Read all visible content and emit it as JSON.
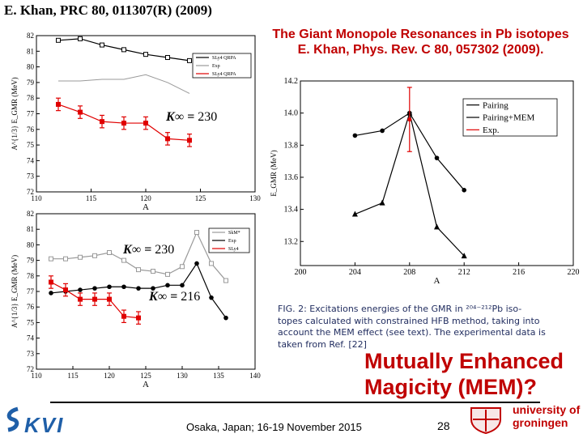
{
  "header": {
    "citation": "E. Khan, PRC 80, 011307(R) (2009)"
  },
  "title": {
    "line1": "The Giant Monopole Resonances in Pb isotopes",
    "line2": "E. Khan, Phys. Rev. C 80, 057302 (2009)."
  },
  "annotations": {
    "k_top": "230",
    "k_bottom_upper": "230",
    "k_bottom_lower": "216",
    "k_label": "K∞ ="
  },
  "caption": {
    "line1": "FIG. 2: Excitations energies of the GMR in ²⁰⁴⁻²¹²Pb iso-",
    "line2": "topes calculated with constrained HFB method, taking into",
    "line3": "account the MEM effect (see text). The experimental data is",
    "line4": "taken from Ref. [22]"
  },
  "mem_question": {
    "line1": "Mutually Enhanced",
    "line2": "Magicity (MEM)?"
  },
  "footer": {
    "venue": "Osaka, Japan; 16-19 November 2015",
    "page": "28",
    "logo_left": "KVI",
    "logo_right_line1": "university of",
    "logo_right_line2": "groningen"
  },
  "colors": {
    "accent_red": "#c00000",
    "exp_red": "#e00000",
    "caption_blue": "#1f2b5e"
  },
  "chart_data": [
    {
      "type": "line",
      "id": "top-left",
      "xlabel": "A",
      "ylabel": "A^{1/3} E_GMR (MeV)",
      "xlim": [
        110,
        130
      ],
      "ylim": [
        72,
        82
      ],
      "xticks": [
        110,
        115,
        120,
        125,
        130
      ],
      "yticks": [
        72,
        73,
        74,
        75,
        76,
        77,
        78,
        79,
        80,
        81,
        82
      ],
      "legend": [
        "SLy4 QRPA",
        "Exp",
        "SLy4 QRPA"
      ],
      "series": [
        {
          "name": "SLy4 CHF",
          "style": "open-square",
          "color": "#000000",
          "x": [
            112,
            114,
            116,
            118,
            120,
            122,
            124
          ],
          "y": [
            81.7,
            81.8,
            81.4,
            81.1,
            80.8,
            80.6,
            80.4
          ]
        },
        {
          "name": "SLy4 QRPA",
          "style": "line",
          "color": "#999999",
          "x": [
            112,
            114,
            116,
            118,
            120,
            122,
            124
          ],
          "y": [
            79.1,
            79.1,
            79.2,
            79.2,
            79.5,
            79.0,
            78.3
          ]
        },
        {
          "name": "Exp",
          "style": "filled-square-err",
          "color": "#e00000",
          "x": [
            112,
            114,
            116,
            118,
            120,
            122,
            124
          ],
          "y": [
            77.6,
            77.1,
            76.5,
            76.4,
            76.4,
            75.4,
            75.3
          ],
          "err": [
            0.4,
            0.4,
            0.4,
            0.4,
            0.4,
            0.4,
            0.4
          ]
        }
      ]
    },
    {
      "type": "line",
      "id": "bottom-left",
      "xlabel": "A",
      "ylabel": "A^{1/3} E_GMR (MeV)",
      "xlim": [
        110,
        140
      ],
      "ylim": [
        72,
        82
      ],
      "xticks": [
        110,
        115,
        120,
        125,
        130,
        135,
        140
      ],
      "yticks": [
        72,
        73,
        74,
        75,
        76,
        77,
        78,
        79,
        80,
        81,
        82
      ],
      "legend": [
        "SkM*",
        "Exp",
        "SLy4"
      ],
      "series": [
        {
          "name": "SLy4",
          "style": "open-square",
          "color": "#999999",
          "x": [
            112,
            114,
            116,
            118,
            120,
            122,
            124,
            126,
            128,
            130,
            132,
            134,
            136
          ],
          "y": [
            79.1,
            79.1,
            79.2,
            79.3,
            79.5,
            79.0,
            78.4,
            78.3,
            78.1,
            78.6,
            80.8,
            78.8,
            77.7
          ]
        },
        {
          "name": "SkM*",
          "style": "filled-circle",
          "color": "#000000",
          "x": [
            112,
            114,
            116,
            118,
            120,
            122,
            124,
            126,
            128,
            130,
            132,
            134,
            136
          ],
          "y": [
            76.9,
            77.0,
            77.1,
            77.2,
            77.3,
            77.3,
            77.2,
            77.2,
            77.4,
            77.4,
            78.8,
            76.6,
            75.3
          ]
        },
        {
          "name": "Exp",
          "style": "filled-square-err",
          "color": "#e00000",
          "x": [
            112,
            114,
            116,
            118,
            120,
            122,
            124
          ],
          "y": [
            77.6,
            77.1,
            76.5,
            76.5,
            76.5,
            75.4,
            75.3
          ],
          "err": [
            0.4,
            0.4,
            0.4,
            0.4,
            0.4,
            0.4,
            0.4
          ]
        }
      ]
    },
    {
      "type": "line",
      "id": "right",
      "xlabel": "A",
      "ylabel": "E_GMR (MeV)",
      "xlim": [
        200,
        220
      ],
      "ylim": [
        13.05,
        14.2
      ],
      "xticks": [
        200,
        204,
        208,
        212,
        216,
        220
      ],
      "yticks": [
        13.2,
        13.4,
        13.6,
        13.8,
        14.0,
        14.2
      ],
      "legend": [
        "Pairing",
        "Pairing+MEM",
        "Exp."
      ],
      "series": [
        {
          "name": "Pairing",
          "style": "filled-circle",
          "color": "#000000",
          "x": [
            204,
            206,
            208,
            210,
            212
          ],
          "y": [
            13.86,
            13.89,
            14.0,
            13.72,
            13.52
          ]
        },
        {
          "name": "Pairing+MEM",
          "style": "filled-triangle",
          "color": "#000000",
          "x": [
            204,
            206,
            208,
            210,
            212
          ],
          "y": [
            13.37,
            13.44,
            14.0,
            13.29,
            13.11
          ]
        },
        {
          "name": "Exp.",
          "style": "red-err",
          "color": "#e00000",
          "x": [
            208
          ],
          "y": [
            13.96
          ],
          "err": [
            0.2
          ]
        }
      ]
    }
  ]
}
